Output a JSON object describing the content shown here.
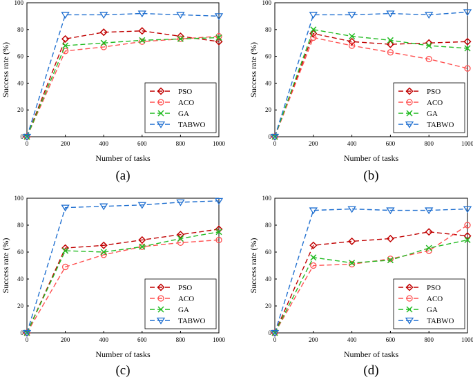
{
  "chart_data": [
    {
      "type": "line",
      "panel_label": "(a)",
      "xlabel": "Number of tasks",
      "ylabel": "Success rate (%)",
      "x": [
        0,
        200,
        400,
        600,
        800,
        1000
      ],
      "xlim": [
        0,
        1000
      ],
      "ylim": [
        0,
        100
      ],
      "xticks": [
        "0",
        "200",
        "400",
        "600",
        "800",
        "1000"
      ],
      "yticks": [
        "0",
        "20",
        "40",
        "60",
        "80",
        "100"
      ],
      "legend_position": "bottom-right",
      "series": [
        {
          "name": "PSO",
          "color": "#c00000",
          "marker": "diamond",
          "values": [
            0,
            73,
            78,
            79,
            75,
            71
          ]
        },
        {
          "name": "ACO",
          "color": "#ff5050",
          "marker": "circle",
          "values": [
            0,
            64,
            67,
            71,
            73,
            75
          ]
        },
        {
          "name": "GA",
          "color": "#22bb22",
          "marker": "x",
          "values": [
            0,
            68,
            70,
            72,
            73,
            74
          ]
        },
        {
          "name": "TABWO",
          "color": "#1f6fd0",
          "marker": "triangle-down",
          "values": [
            0,
            91,
            91,
            92,
            91,
            90
          ]
        }
      ]
    },
    {
      "type": "line",
      "panel_label": "(b)",
      "xlabel": "Number of tasks",
      "ylabel": "Success rate (%)",
      "x": [
        0,
        200,
        400,
        600,
        800,
        1000
      ],
      "xlim": [
        0,
        1000
      ],
      "ylim": [
        0,
        100
      ],
      "xticks": [
        "0",
        "200",
        "400",
        "600",
        "800",
        "1000"
      ],
      "yticks": [
        "0",
        "20",
        "40",
        "60",
        "80",
        "100"
      ],
      "legend_position": "bottom-right",
      "series": [
        {
          "name": "PSO",
          "color": "#c00000",
          "marker": "diamond",
          "values": [
            0,
            77,
            71,
            69,
            70,
            71
          ]
        },
        {
          "name": "ACO",
          "color": "#ff5050",
          "marker": "circle",
          "values": [
            0,
            74,
            68,
            63,
            58,
            51
          ]
        },
        {
          "name": "GA",
          "color": "#22bb22",
          "marker": "x",
          "values": [
            0,
            80,
            75,
            72,
            68,
            66
          ]
        },
        {
          "name": "TABWO",
          "color": "#1f6fd0",
          "marker": "triangle-down",
          "values": [
            0,
            91,
            91,
            92,
            91,
            93
          ]
        }
      ]
    },
    {
      "type": "line",
      "panel_label": "(c)",
      "xlabel": "Number of tasks",
      "ylabel": "Success rate (%)",
      "x": [
        0,
        200,
        400,
        600,
        800,
        1000
      ],
      "xlim": [
        0,
        1000
      ],
      "ylim": [
        0,
        100
      ],
      "xticks": [
        "0",
        "200",
        "400",
        "600",
        "800",
        "1000"
      ],
      "yticks": [
        "0",
        "20",
        "40",
        "60",
        "80",
        "100"
      ],
      "legend_position": "bottom-right",
      "series": [
        {
          "name": "PSO",
          "color": "#c00000",
          "marker": "diamond",
          "values": [
            0,
            63,
            65,
            69,
            73,
            77
          ]
        },
        {
          "name": "ACO",
          "color": "#ff5050",
          "marker": "circle",
          "values": [
            0,
            49,
            58,
            64,
            67,
            69
          ]
        },
        {
          "name": "GA",
          "color": "#22bb22",
          "marker": "x",
          "values": [
            0,
            61,
            60,
            64,
            70,
            75
          ]
        },
        {
          "name": "TABWO",
          "color": "#1f6fd0",
          "marker": "triangle-down",
          "values": [
            0,
            93,
            94,
            95,
            97,
            98
          ]
        }
      ]
    },
    {
      "type": "line",
      "panel_label": "(d)",
      "xlabel": "Number of tasks",
      "ylabel": "Success rate (%)",
      "x": [
        0,
        200,
        400,
        600,
        800,
        1000
      ],
      "xlim": [
        0,
        1000
      ],
      "ylim": [
        0,
        100
      ],
      "xticks": [
        "0",
        "200",
        "400",
        "600",
        "800",
        "1000"
      ],
      "yticks": [
        "0",
        "20",
        "40",
        "60",
        "80",
        "100"
      ],
      "legend_position": "bottom-right",
      "series": [
        {
          "name": "PSO",
          "color": "#c00000",
          "marker": "diamond",
          "values": [
            0,
            65,
            68,
            70,
            75,
            72
          ]
        },
        {
          "name": "ACO",
          "color": "#ff5050",
          "marker": "circle",
          "values": [
            0,
            50,
            51,
            55,
            61,
            80
          ]
        },
        {
          "name": "GA",
          "color": "#22bb22",
          "marker": "x",
          "values": [
            0,
            56,
            52,
            54,
            63,
            69
          ]
        },
        {
          "name": "TABWO",
          "color": "#1f6fd0",
          "marker": "triangle-down",
          "values": [
            0,
            91,
            92,
            91,
            91,
            92
          ]
        }
      ]
    }
  ]
}
